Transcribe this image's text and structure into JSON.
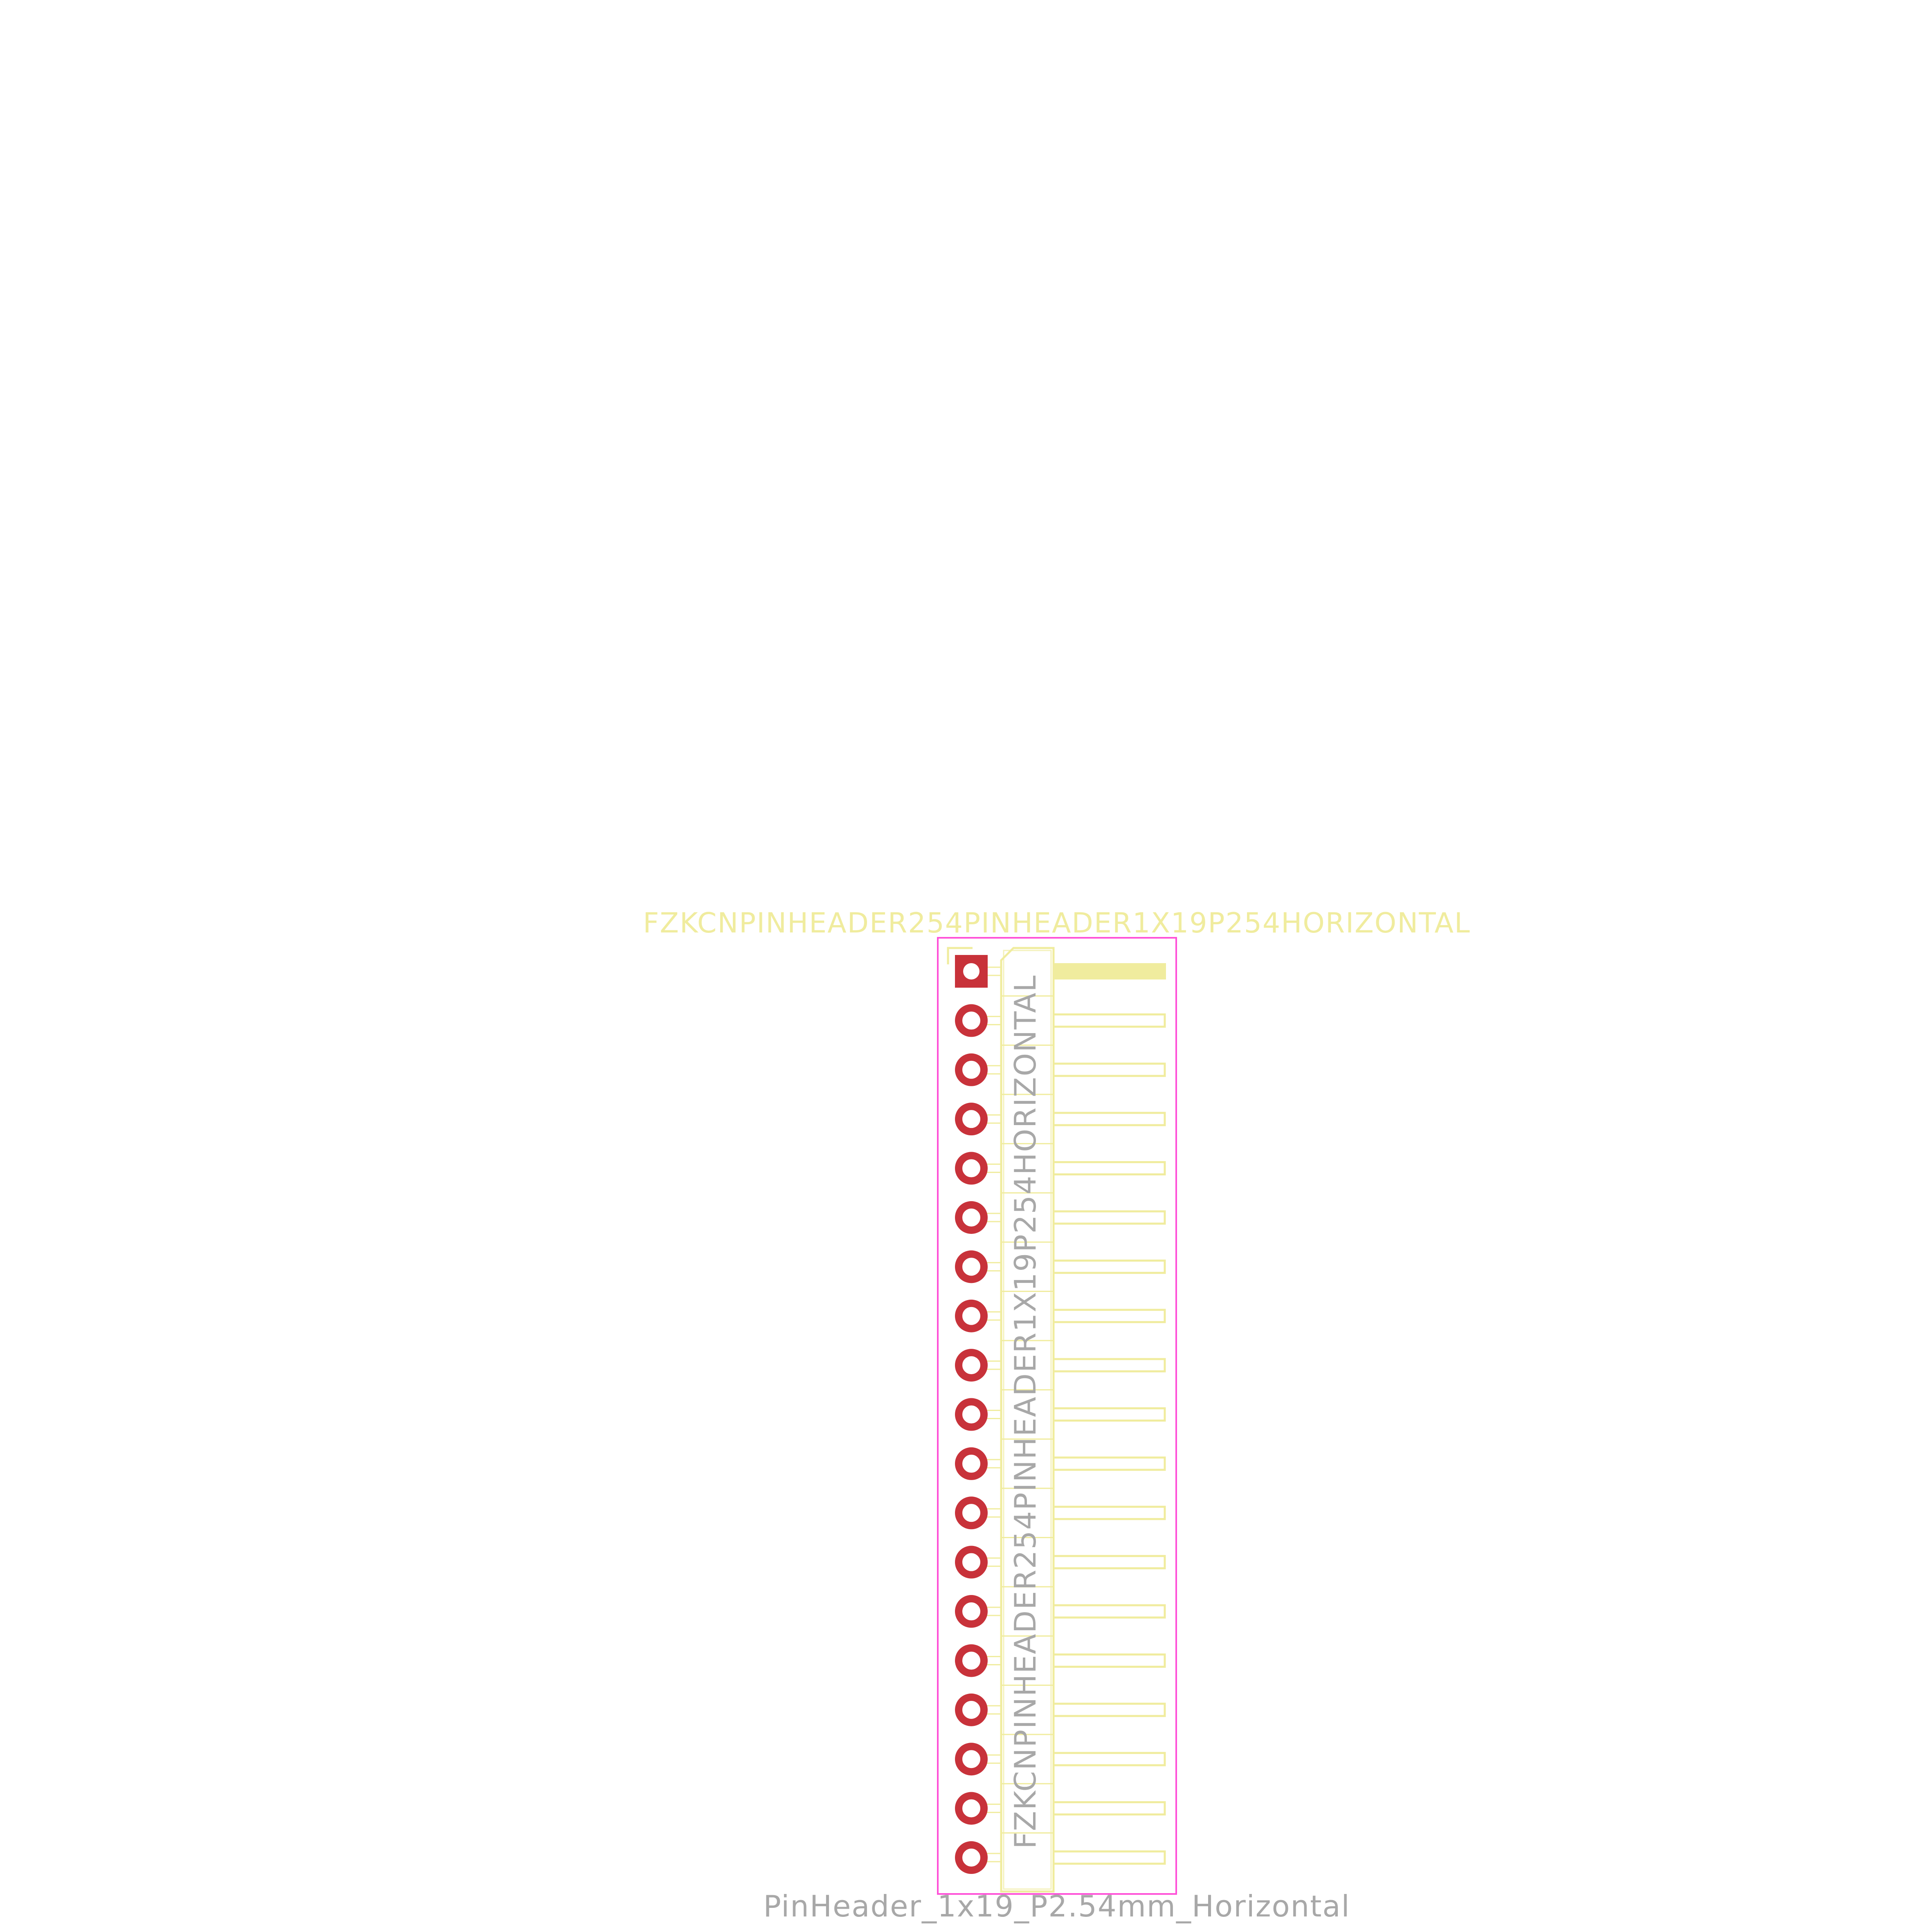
{
  "footprint": {
    "reference_label": "FZKCNPINHEADER254PINHEADER1X19P254HORIZONTAL",
    "value_label": "FZKCNPINHEADER254PINHEADER1X19P254HORIZONTAL",
    "name_label": "PinHeader_1x19_P2.54mm_Horizontal",
    "pin_count": 19,
    "colors": {
      "pad": "#c8323a",
      "silkscreen": "#f0ec9e",
      "fab_text": "#a8a8a8",
      "courtyard": "#ff50d8",
      "background": "#ffffff"
    },
    "pad_shapes": [
      "square",
      "round",
      "round",
      "round",
      "round",
      "round",
      "round",
      "round",
      "round",
      "round",
      "round",
      "round",
      "round",
      "round",
      "round",
      "round",
      "round",
      "round",
      "round"
    ]
  }
}
